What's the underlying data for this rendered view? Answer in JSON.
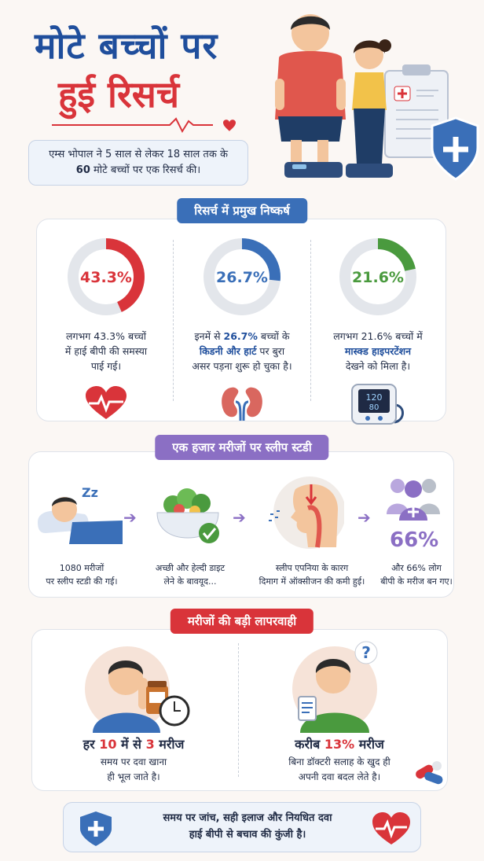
{
  "header": {
    "title_line1": "मोटे बच्चों पर",
    "title_line2": "हुई रिसर्च",
    "intro_line1": "एम्स भोपाल ने 5 साल से लेकर 18 साल तक के",
    "intro_count": "60",
    "intro_line2_rest": " मोटे बच्चों पर एक रिसर्च की।"
  },
  "findings": {
    "heading": "रिसर्च में प्रमुख निष्कर्ष",
    "items": [
      {
        "percent_label": "43.3%",
        "value": 43.3,
        "color": "#d9343a",
        "text_line1": "लगभग 43.3% बच्चों",
        "text_line2": "में हाई बीपी की समस्या",
        "text_line3": "पाई गई।",
        "icon": "heart-pulse-icon"
      },
      {
        "percent_label": "26.7%",
        "value": 26.7,
        "color": "#3a6fb8",
        "text_line1_pre": "इनमें से ",
        "text_line1_hl": "26.7%",
        "text_line1_post": " बच्चों के",
        "text_line2": "किडनी और हार्ट",
        "text_line2_post": " पर बुरा",
        "text_line3": "असर पड़ना शुरू हो चुका है।",
        "icon": "kidney-icon"
      },
      {
        "percent_label": "21.6%",
        "value": 21.6,
        "color": "#4a9a3e",
        "text_line1": "लगभग 21.6% बच्चों में",
        "text_line2": "मास्क्ड हाइपरटेंशन",
        "text_line3": "देखने को मिला है।",
        "icon": "bp-monitor-icon",
        "monitor_top": "120",
        "monitor_bottom": "80"
      }
    ]
  },
  "sleep_study": {
    "heading": "एक हजार मरीजों पर स्लीप स्टडी",
    "steps": [
      {
        "line1": "1080 मरीजों",
        "line2": "पर स्लीप स्टडी की गई।",
        "icon": "sleeping-person-icon",
        "zz": "Zz"
      },
      {
        "line1": "अच्छी और हेल्दी डाइट",
        "line2": "लेने के बावयूद...",
        "icon": "salad-bowl-icon"
      },
      {
        "line1": "स्लीप एपनिया के कारग",
        "line2": "दिमाग में ऑक्सीजन की कमी हुई।",
        "icon": "airway-icon"
      },
      {
        "line1": "और 66% लोग",
        "line2": "बीपी के मरीज बन गए।",
        "icon": "people-group-icon",
        "big": "66%"
      }
    ]
  },
  "negligence": {
    "heading": "मरीजों की बड़ी लापरवाही",
    "items": [
      {
        "big_pre": "हर ",
        "big_n1": "10",
        "big_mid": " में से ",
        "big_n2": "3",
        "big_post": " मरीज",
        "line1": "समय पर दवा खाना",
        "line2": "ही भूल जाते है।",
        "icon": "forgetful-man-icon"
      },
      {
        "big_pre": "करीब ",
        "big_n1": "13%",
        "big_post": " मरीज",
        "line1": "बिना डॉक्टरी सलाह के खुद ही",
        "line2": "अपनी दवा बदल लेते है।",
        "icon": "confused-man-icon",
        "question": "?"
      }
    ]
  },
  "footer": {
    "line1": "समय पर जांच, सही इलाज और नियधित दवा",
    "line2": "हाई बीपी से बचाव की कुंजी है।"
  },
  "colors": {
    "primary_blue": "#1f4e9c",
    "accent_red": "#d9343a",
    "sleep_purple": "#8b6fc4",
    "green": "#4a9a3e"
  }
}
